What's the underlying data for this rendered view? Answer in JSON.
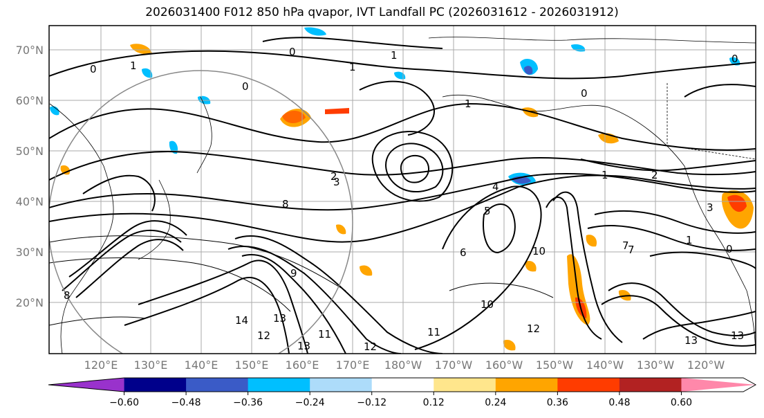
{
  "title": "2026031400 F012 850 hPa qvapor, IVT Landfall PC (2026031612 - 2026031912)",
  "latitude_labels": [
    "70°N",
    "60°N",
    "50°N",
    "40°N",
    "30°N",
    "20°N"
  ],
  "longitude_labels": [
    "120°E",
    "130°E",
    "140°E",
    "150°E",
    "160°E",
    "170°E",
    "180°W",
    "170°W",
    "160°W",
    "150°W",
    "140°W",
    "130°W",
    "120°W"
  ],
  "colorbar": {
    "colors": [
      "#9932CC",
      "#00008B",
      "#3A5BC7",
      "#00BFFF",
      "#ADDCFA",
      "#FFFFFF",
      "#FFE68C",
      "#FFA500",
      "#FF3C00",
      "#B22222",
      "#FF88AA"
    ],
    "ticks": [
      "−0.60",
      "−0.48",
      "−0.36",
      "−0.24",
      "−0.12",
      "0.12",
      "0.24",
      "0.36",
      "0.48",
      "0.60"
    ]
  },
  "contour_labels": [
    "0",
    "1",
    "0",
    "1",
    "0",
    "1",
    "2",
    "3",
    "4",
    "5",
    "6",
    "7",
    "8",
    "9",
    "10",
    "10",
    "11",
    "12",
    "13",
    "12",
    "13",
    "11",
    "14",
    "13",
    "12",
    "13",
    "1",
    "2",
    "3",
    "1",
    "7",
    "0",
    "0",
    "0",
    "1",
    "8"
  ],
  "colors": {
    "contour": "#000000",
    "gridline": "#aaaaaa",
    "circle": "#888888",
    "positive_fill": "#FFA500",
    "positive_light": "#FFE68C",
    "negative_fill": "#00BFFF",
    "negative_dark": "#3A5BC7"
  }
}
